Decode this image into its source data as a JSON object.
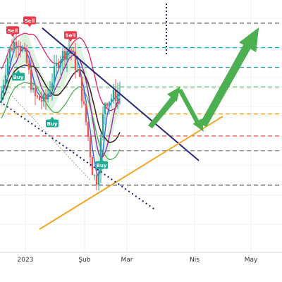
{
  "chart_data": {
    "type": "candlestick",
    "x_ticks": [
      {
        "label": "2023",
        "t": 0.09
      },
      {
        "label": "Şub",
        "t": 0.3
      },
      {
        "label": "Mar",
        "t": 0.45
      },
      {
        "label": "Nis",
        "t": 0.69
      },
      {
        "label": "May",
        "t": 0.89
      }
    ],
    "price_levels": [
      {
        "name": "level-1",
        "value": 92,
        "color": "#555555",
        "style": "dashed"
      },
      {
        "name": "level-2",
        "value": 82,
        "color": "#00bcd4",
        "style": "dashed"
      },
      {
        "name": "level-3",
        "value": 74,
        "color": "#26a69a",
        "style": "dashed"
      },
      {
        "name": "level-4",
        "value": 66,
        "color": "#4caf50",
        "style": "dashed"
      },
      {
        "name": "level-5",
        "value": 55,
        "color": "#ff9800",
        "style": "dashed"
      },
      {
        "name": "level-6",
        "value": 46,
        "color": "#e53935",
        "style": "dashed"
      },
      {
        "name": "level-7",
        "value": 40,
        "color": "#757575",
        "style": "dashed"
      },
      {
        "name": "level-8",
        "value": 26,
        "color": "#424242",
        "style": "dashed"
      }
    ],
    "signals": [
      {
        "label": "Sell",
        "type": "sell",
        "t": 0.105,
        "price": 93
      },
      {
        "label": "Sell",
        "type": "sell",
        "t": 0.045,
        "price": 89
      },
      {
        "label": "Sell",
        "type": "sell",
        "t": 0.25,
        "price": 87
      },
      {
        "label": "Buy",
        "type": "buy",
        "t": 0.065,
        "price": 70
      },
      {
        "label": "Buy",
        "type": "buy",
        "t": 0.185,
        "price": 51
      },
      {
        "label": "Buy",
        "type": "buy",
        "t": 0.36,
        "price": 34
      }
    ],
    "colors": {
      "up": "#26a69a",
      "down": "#ef5350",
      "sell": "#f23645",
      "buy": "#22ab94",
      "projection": "#4caf50",
      "trend_down": "#2b2a7a",
      "trend_up": "#f5a623"
    }
  }
}
